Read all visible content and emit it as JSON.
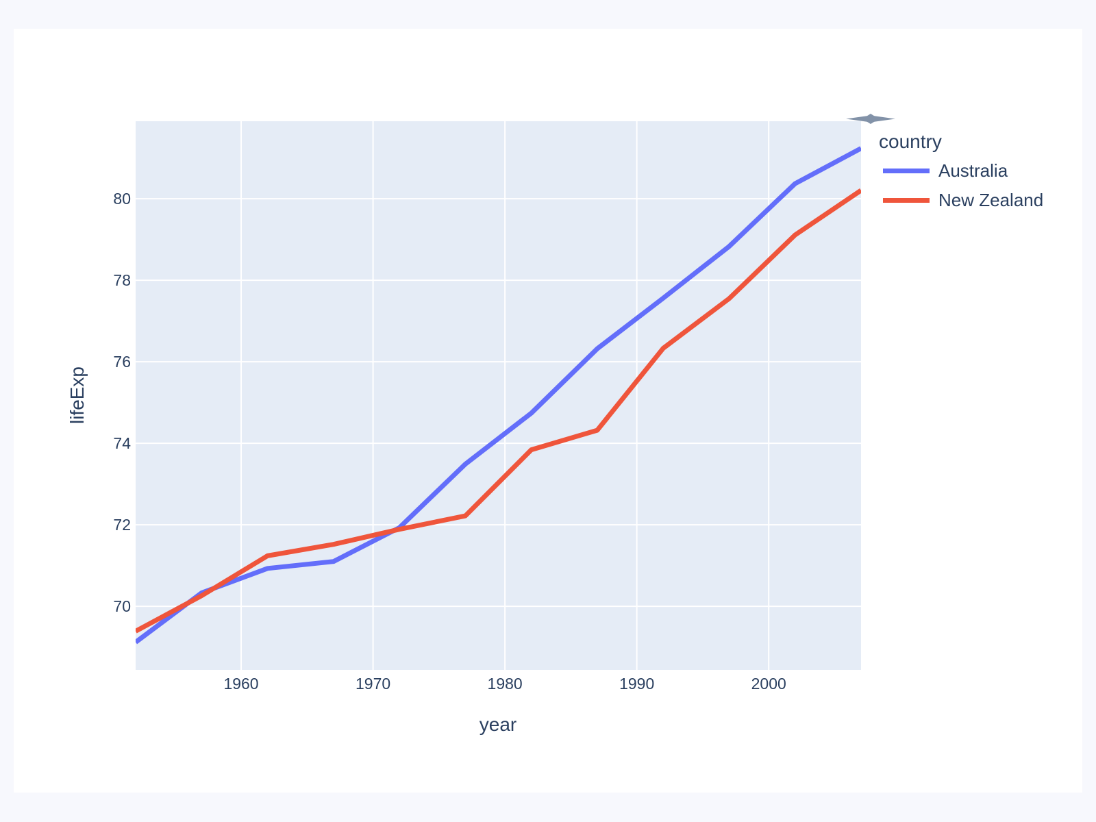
{
  "colors": {
    "page_background": "#f7f8fd",
    "paper_background": "#ffffff",
    "plot_background": "#e5ecf6",
    "gridline": "#ffffff",
    "text": "#2a3f5f",
    "modebar_logo": "#8292a8"
  },
  "icons": {
    "modebar_logo": "plotly-spindle-icon"
  },
  "chart_data": {
    "type": "line",
    "title": "",
    "xlabel": "year",
    "ylabel": "lifeExp",
    "legend_title": "country",
    "legend_position": "top-right-outside",
    "grid": true,
    "x": [
      1952,
      1957,
      1962,
      1967,
      1972,
      1977,
      1982,
      1987,
      1992,
      1997,
      2002,
      2007
    ],
    "series": [
      {
        "name": "Australia",
        "color": "#636efa",
        "values": [
          69.12,
          70.33,
          70.93,
          71.1,
          71.93,
          73.49,
          74.74,
          76.32,
          77.56,
          78.83,
          80.37,
          81.235
        ]
      },
      {
        "name": "New Zealand",
        "color": "#ef553b",
        "values": [
          69.39,
          70.26,
          71.24,
          71.52,
          71.89,
          72.22,
          73.84,
          74.32,
          76.33,
          77.55,
          79.11,
          80.204
        ]
      }
    ],
    "xlim": [
      1952,
      2007
    ],
    "ylim": [
      68.44,
      81.9
    ],
    "xticks": [
      1960,
      1970,
      1980,
      1990,
      2000
    ],
    "yticks": [
      70,
      72,
      74,
      76,
      78,
      80
    ],
    "line_width": 7
  }
}
